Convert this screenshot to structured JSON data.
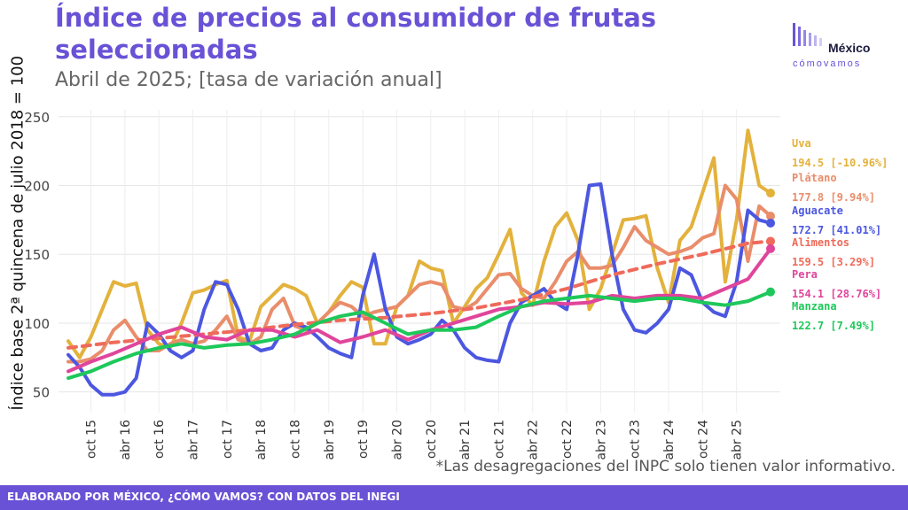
{
  "header": {
    "title": "Índice de precios al consumidor de frutas seleccionadas",
    "subtitle": "Abril de 2025; [tasa de variación anual]"
  },
  "logo": {
    "name": "México",
    "tagline": "cómovamos"
  },
  "note": "*Las desagregaciones del INPC solo tienen valor informativo.",
  "footer": "ELABORADO POR MÉXICO, ¿CÓMO VAMOS? CON DATOS DEL INEGI",
  "chart_data": {
    "type": "line",
    "title": "Índice de precios al consumidor de frutas seleccionadas",
    "subtitle": "Abril de 2025; [tasa de variación anual]",
    "ylabel": "Índice base 2ª quincena de julio 2018 = 100",
    "xlabel": "",
    "ylim": [
      35,
      255
    ],
    "yticks": [
      50,
      100,
      150,
      200,
      250
    ],
    "grid": true,
    "legend": "right",
    "x_range": [
      "abr 15",
      "abr 25"
    ],
    "x_tick_labels": [
      "oct 15",
      "abr 16",
      "oct 16",
      "abr 17",
      "oct 17",
      "abr 18",
      "oct 18",
      "abr 19",
      "oct 19",
      "abr 20",
      "oct 20",
      "abr 21",
      "oct 21",
      "abr 22",
      "oct 22",
      "abr 23",
      "oct 23",
      "abr 24",
      "oct 24",
      "abr 25"
    ],
    "series": [
      {
        "name": "Uva",
        "label": "Uva",
        "value_label": "194.5 [-10.96%]",
        "color": "#e3b23c",
        "dash": false,
        "points": [
          [
            0,
            87
          ],
          [
            1,
            75
          ],
          [
            2,
            90
          ],
          [
            3,
            110
          ],
          [
            4,
            130
          ],
          [
            5,
            127
          ],
          [
            6,
            129
          ],
          [
            7,
            95
          ],
          [
            8,
            85
          ],
          [
            9,
            82
          ],
          [
            10,
            100
          ],
          [
            11,
            122
          ],
          [
            12,
            124
          ],
          [
            13,
            128
          ],
          [
            14,
            131
          ],
          [
            15,
            90
          ],
          [
            16,
            87
          ],
          [
            17,
            112
          ],
          [
            18,
            120
          ],
          [
            19,
            128
          ],
          [
            20,
            125
          ],
          [
            21,
            120
          ],
          [
            22,
            100
          ],
          [
            23,
            108
          ],
          [
            24,
            120
          ],
          [
            25,
            130
          ],
          [
            26,
            126
          ],
          [
            27,
            85
          ],
          [
            28,
            85
          ],
          [
            29,
            112
          ],
          [
            30,
            120
          ],
          [
            31,
            145
          ],
          [
            32,
            140
          ],
          [
            33,
            138
          ],
          [
            34,
            100
          ],
          [
            35,
            112
          ],
          [
            36,
            125
          ],
          [
            37,
            133
          ],
          [
            38,
            150
          ],
          [
            39,
            168
          ],
          [
            40,
            122
          ],
          [
            41,
            113
          ],
          [
            42,
            145
          ],
          [
            43,
            170
          ],
          [
            44,
            180
          ],
          [
            45,
            160
          ],
          [
            46,
            110
          ],
          [
            47,
            125
          ],
          [
            48,
            150
          ],
          [
            49,
            175
          ],
          [
            50,
            176
          ],
          [
            51,
            178
          ],
          [
            52,
            140
          ],
          [
            53,
            115
          ],
          [
            54,
            160
          ],
          [
            55,
            170
          ],
          [
            56,
            195
          ],
          [
            57,
            220
          ],
          [
            58,
            130
          ],
          [
            59,
            175
          ],
          [
            60,
            240
          ],
          [
            61,
            200
          ],
          [
            62,
            194.5
          ]
        ]
      },
      {
        "name": "Plátano",
        "label": "Plátano",
        "value_label": "177.8 [9.94%]",
        "color": "#e98d6b",
        "dash": false,
        "points": [
          [
            0,
            72
          ],
          [
            1,
            72
          ],
          [
            2,
            74
          ],
          [
            3,
            80
          ],
          [
            4,
            95
          ],
          [
            5,
            102
          ],
          [
            6,
            90
          ],
          [
            7,
            80
          ],
          [
            8,
            80
          ],
          [
            9,
            85
          ],
          [
            10,
            88
          ],
          [
            11,
            85
          ],
          [
            12,
            87
          ],
          [
            13,
            95
          ],
          [
            14,
            105
          ],
          [
            15,
            88
          ],
          [
            16,
            85
          ],
          [
            17,
            90
          ],
          [
            18,
            110
          ],
          [
            19,
            118
          ],
          [
            20,
            98
          ],
          [
            21,
            95
          ],
          [
            22,
            100
          ],
          [
            23,
            108
          ],
          [
            24,
            115
          ],
          [
            25,
            112
          ],
          [
            26,
            105
          ],
          [
            27,
            108
          ],
          [
            28,
            110
          ],
          [
            29,
            112
          ],
          [
            30,
            120
          ],
          [
            31,
            128
          ],
          [
            32,
            130
          ],
          [
            33,
            128
          ],
          [
            34,
            112
          ],
          [
            35,
            110
          ],
          [
            36,
            115
          ],
          [
            37,
            125
          ],
          [
            38,
            135
          ],
          [
            39,
            136
          ],
          [
            40,
            125
          ],
          [
            41,
            120
          ],
          [
            42,
            118
          ],
          [
            43,
            130
          ],
          [
            44,
            145
          ],
          [
            45,
            152
          ],
          [
            46,
            140
          ],
          [
            47,
            140
          ],
          [
            48,
            142
          ],
          [
            49,
            155
          ],
          [
            50,
            170
          ],
          [
            51,
            160
          ],
          [
            52,
            155
          ],
          [
            53,
            150
          ],
          [
            54,
            152
          ],
          [
            55,
            155
          ],
          [
            56,
            162
          ],
          [
            57,
            165
          ],
          [
            58,
            200
          ],
          [
            59,
            190
          ],
          [
            60,
            145
          ],
          [
            61,
            185
          ],
          [
            62,
            177.8
          ]
        ]
      },
      {
        "name": "Aguacate",
        "label": "Aguacate",
        "value_label": "172.7 [41.01%]",
        "color": "#4c57e0",
        "dash": false,
        "points": [
          [
            0,
            77
          ],
          [
            1,
            68
          ],
          [
            2,
            55
          ],
          [
            3,
            48
          ],
          [
            4,
            48
          ],
          [
            5,
            50
          ],
          [
            6,
            60
          ],
          [
            7,
            100
          ],
          [
            8,
            92
          ],
          [
            9,
            80
          ],
          [
            10,
            75
          ],
          [
            11,
            80
          ],
          [
            12,
            110
          ],
          [
            13,
            130
          ],
          [
            14,
            128
          ],
          [
            15,
            110
          ],
          [
            16,
            85
          ],
          [
            17,
            80
          ],
          [
            18,
            82
          ],
          [
            19,
            95
          ],
          [
            20,
            100
          ],
          [
            21,
            97
          ],
          [
            22,
            90
          ],
          [
            23,
            82
          ],
          [
            24,
            78
          ],
          [
            25,
            75
          ],
          [
            26,
            120
          ],
          [
            27,
            150
          ],
          [
            28,
            110
          ],
          [
            29,
            90
          ],
          [
            30,
            85
          ],
          [
            31,
            88
          ],
          [
            32,
            92
          ],
          [
            33,
            102
          ],
          [
            34,
            95
          ],
          [
            35,
            82
          ],
          [
            36,
            75
          ],
          [
            37,
            73
          ],
          [
            38,
            72
          ],
          [
            39,
            100
          ],
          [
            40,
            115
          ],
          [
            41,
            120
          ],
          [
            42,
            125
          ],
          [
            43,
            115
          ],
          [
            44,
            110
          ],
          [
            45,
            150
          ],
          [
            46,
            200
          ],
          [
            47,
            201
          ],
          [
            48,
            150
          ],
          [
            49,
            110
          ],
          [
            50,
            95
          ],
          [
            51,
            93
          ],
          [
            52,
            100
          ],
          [
            53,
            110
          ],
          [
            54,
            140
          ],
          [
            55,
            135
          ],
          [
            56,
            115
          ],
          [
            57,
            108
          ],
          [
            58,
            105
          ],
          [
            59,
            130
          ],
          [
            60,
            182
          ],
          [
            61,
            175
          ],
          [
            62,
            172.7
          ]
        ]
      },
      {
        "name": "Alimentos",
        "label": "Alimentos",
        "value_label": "159.5 [3.29%]",
        "color": "#ef6a5a",
        "dash": true,
        "points": [
          [
            0,
            82
          ],
          [
            4,
            86
          ],
          [
            8,
            89
          ],
          [
            12,
            92
          ],
          [
            16,
            95
          ],
          [
            20,
            99
          ],
          [
            24,
            102
          ],
          [
            28,
            104
          ],
          [
            32,
            107
          ],
          [
            36,
            111
          ],
          [
            40,
            117
          ],
          [
            44,
            125
          ],
          [
            48,
            135
          ],
          [
            52,
            143
          ],
          [
            56,
            150
          ],
          [
            60,
            158
          ],
          [
            62,
            159.5
          ]
        ]
      },
      {
        "name": "Pera",
        "label": "Pera",
        "value_label": "154.1 [28.76%]",
        "color": "#e0459b",
        "dash": false,
        "points": [
          [
            0,
            65
          ],
          [
            2,
            72
          ],
          [
            4,
            78
          ],
          [
            6,
            85
          ],
          [
            8,
            92
          ],
          [
            10,
            97
          ],
          [
            12,
            90
          ],
          [
            14,
            88
          ],
          [
            16,
            95
          ],
          [
            18,
            95
          ],
          [
            20,
            90
          ],
          [
            22,
            95
          ],
          [
            24,
            86
          ],
          [
            26,
            90
          ],
          [
            28,
            95
          ],
          [
            30,
            88
          ],
          [
            32,
            95
          ],
          [
            34,
            100
          ],
          [
            36,
            105
          ],
          [
            38,
            110
          ],
          [
            40,
            112
          ],
          [
            42,
            115
          ],
          [
            44,
            114
          ],
          [
            46,
            115
          ],
          [
            48,
            120
          ],
          [
            50,
            118
          ],
          [
            52,
            120
          ],
          [
            54,
            120
          ],
          [
            56,
            118
          ],
          [
            58,
            125
          ],
          [
            60,
            132
          ],
          [
            62,
            154.1
          ]
        ]
      },
      {
        "name": "Manzana",
        "label": "Manzana",
        "value_label": "122.7 [7.49%]",
        "color": "#1ec85a",
        "dash": false,
        "points": [
          [
            0,
            60
          ],
          [
            2,
            65
          ],
          [
            4,
            72
          ],
          [
            6,
            78
          ],
          [
            8,
            82
          ],
          [
            10,
            85
          ],
          [
            12,
            82
          ],
          [
            14,
            84
          ],
          [
            16,
            85
          ],
          [
            18,
            88
          ],
          [
            20,
            92
          ],
          [
            22,
            100
          ],
          [
            24,
            105
          ],
          [
            26,
            108
          ],
          [
            28,
            100
          ],
          [
            30,
            92
          ],
          [
            32,
            95
          ],
          [
            34,
            95
          ],
          [
            36,
            97
          ],
          [
            38,
            105
          ],
          [
            40,
            112
          ],
          [
            42,
            116
          ],
          [
            44,
            118
          ],
          [
            46,
            120
          ],
          [
            48,
            118
          ],
          [
            50,
            116
          ],
          [
            52,
            118
          ],
          [
            54,
            118
          ],
          [
            56,
            115
          ],
          [
            58,
            113
          ],
          [
            60,
            116
          ],
          [
            62,
            122.7
          ]
        ]
      }
    ]
  }
}
